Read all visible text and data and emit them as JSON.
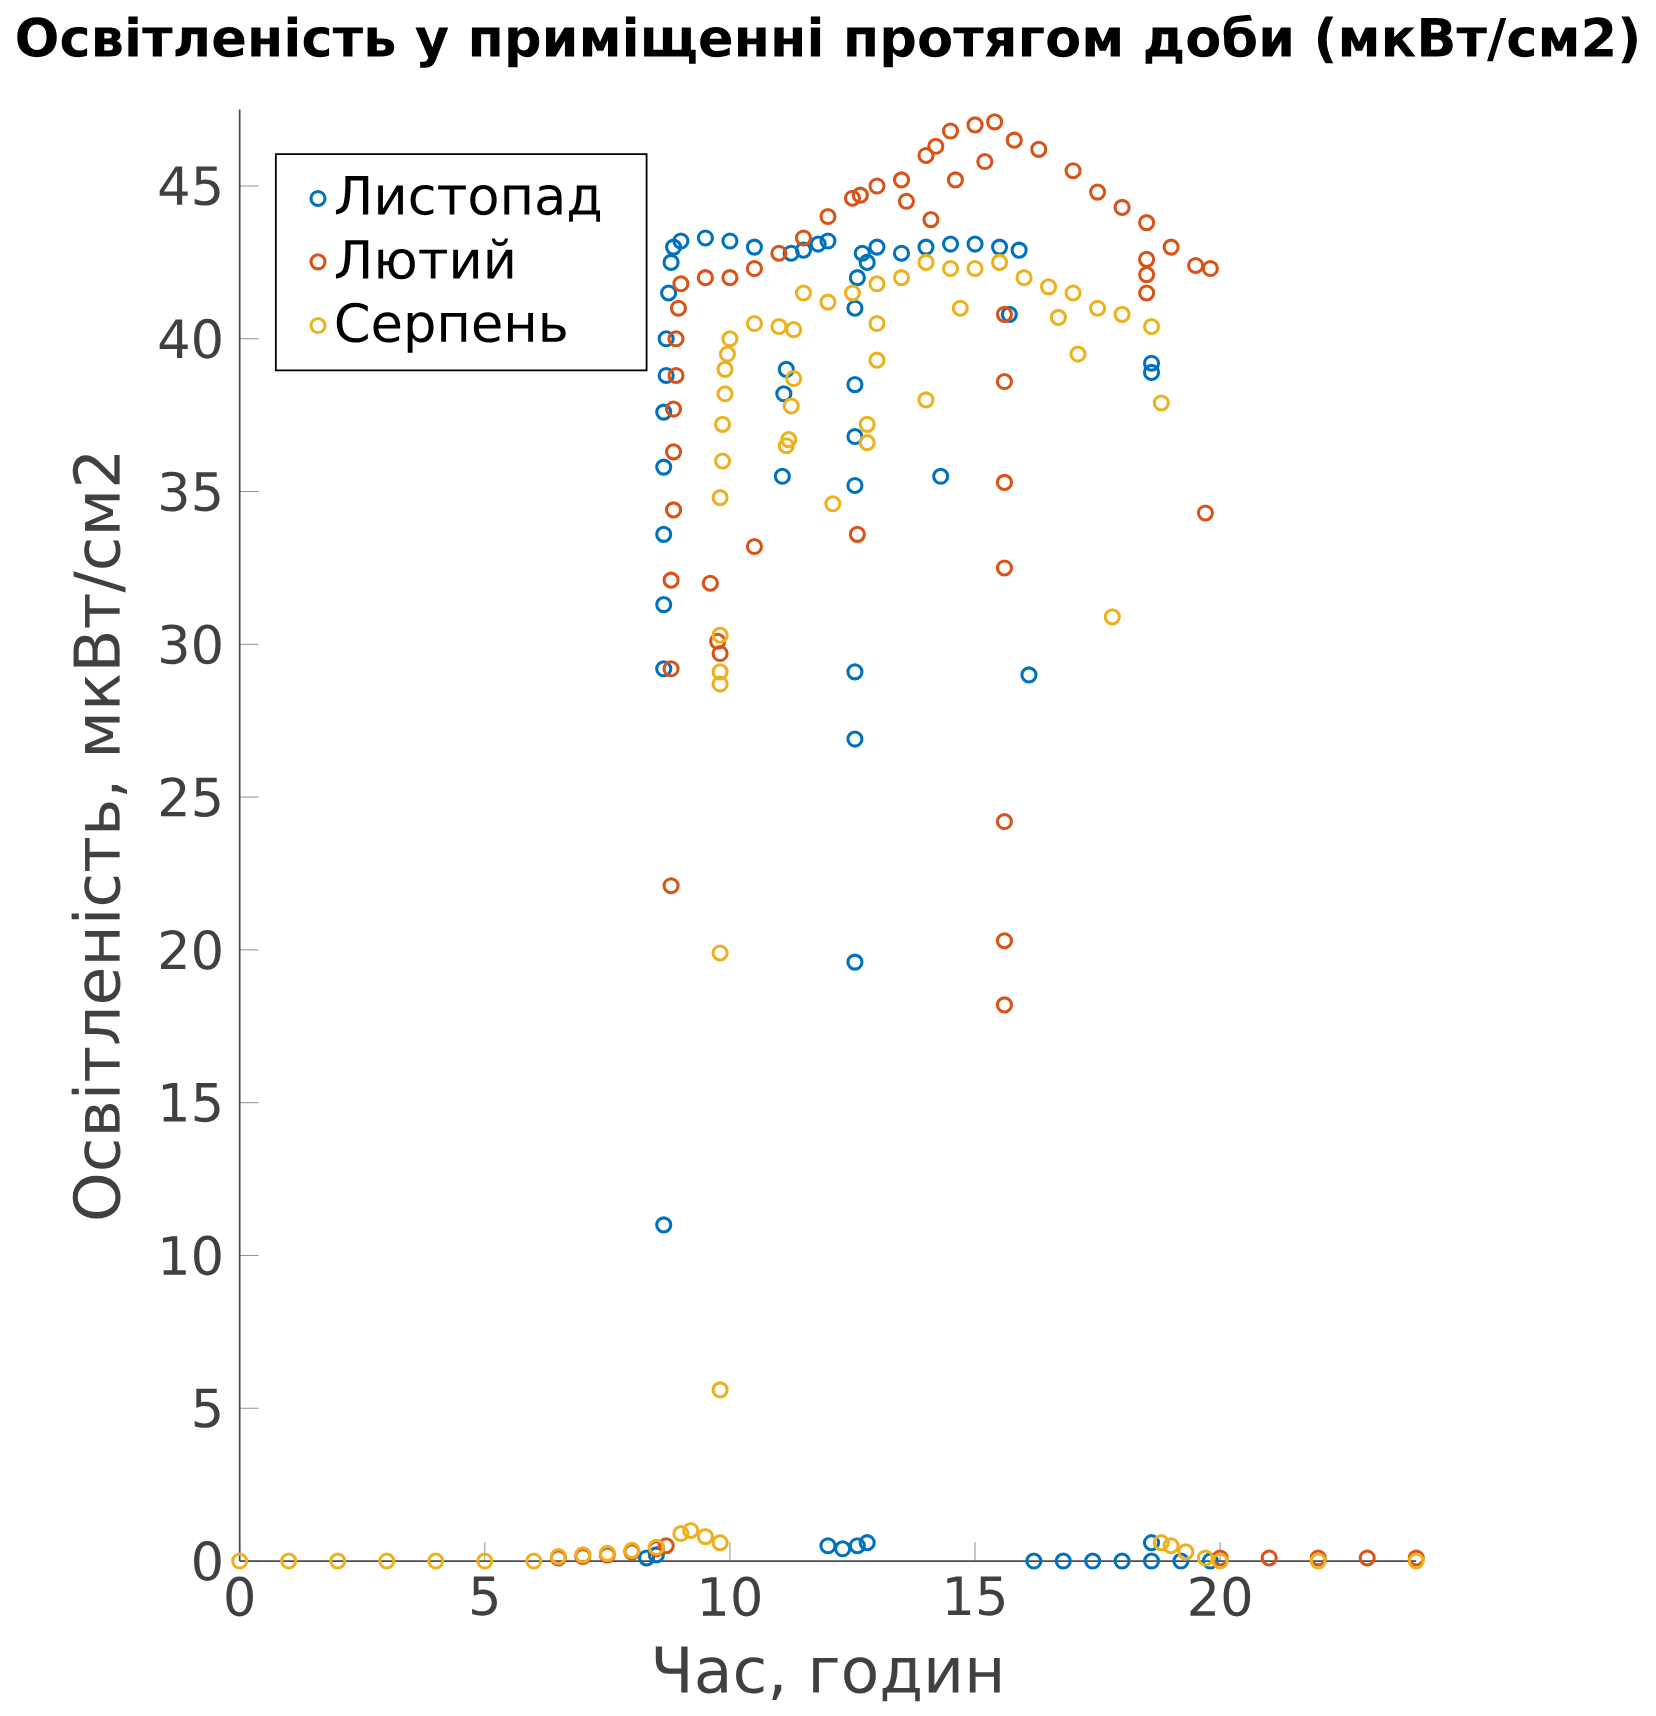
{
  "chart_data": {
    "type": "scatter",
    "title": "Освітленість у приміщенні протягом доби (мкВт/см2)",
    "xlabel": "Час, годин",
    "ylabel": "Освітленість, мкВт/см2",
    "xlim": [
      0,
      24
    ],
    "ylim": [
      0,
      47.5
    ],
    "xticks": [
      0,
      5,
      10,
      15,
      20
    ],
    "yticks": [
      0,
      5,
      10,
      15,
      20,
      25,
      30,
      35,
      40,
      45
    ],
    "marker": "circle",
    "legend": "top left",
    "grid": false,
    "series": [
      {
        "name": "Листопад",
        "color": "#0072bd",
        "x": [
          8.3,
          8.5,
          8.65,
          8.65,
          8.65,
          8.65,
          8.65,
          8.65,
          8.7,
          8.7,
          8.75,
          8.8,
          8.85,
          9,
          9.5,
          10,
          10.5,
          11.25,
          11.5,
          11.8,
          12,
          11.07,
          11.1,
          11.15,
          12.0,
          12.3,
          12.6,
          12.8,
          12.55,
          12.55,
          12.55,
          12.55,
          12.55,
          12.55,
          12.55,
          12.6,
          12.7,
          12.8,
          13,
          13.5,
          14,
          14.5,
          15,
          15.5,
          15.9,
          14.3,
          16.1,
          15.7,
          16.2,
          16.8,
          17.4,
          18.0,
          18.6,
          19.2,
          19.8,
          18.6,
          18.6,
          18.6
        ],
        "values": [
          0.1,
          0.2,
          11,
          29.2,
          31.3,
          33.6,
          35.8,
          37.6,
          38.8,
          40,
          41.5,
          42.5,
          43,
          43.2,
          43.3,
          43.2,
          43.0,
          42.8,
          42.9,
          43.1,
          43.2,
          35.5,
          38.2,
          39,
          0.5,
          0.4,
          0.5,
          0.6,
          19.6,
          26.9,
          29.1,
          35.2,
          36.8,
          38.5,
          41,
          42,
          42.8,
          42.5,
          43,
          42.8,
          43,
          43.1,
          43.1,
          43.0,
          42.9,
          35.5,
          29,
          40.8,
          0,
          0,
          0,
          0,
          0,
          0,
          0,
          39.2,
          38.9,
          0.6
        ]
      },
      {
        "name": "Лютий",
        "color": "#d95319",
        "x": [
          6.5,
          7,
          7.5,
          8,
          8.5,
          8.7,
          8.8,
          8.8,
          8.8,
          8.85,
          8.85,
          8.85,
          8.9,
          8.9,
          8.95,
          9,
          9.5,
          10,
          10.5,
          11,
          11.5,
          12,
          12.5,
          12.66,
          13,
          13.5,
          14,
          14.2,
          14.5,
          15,
          15.4,
          13.6,
          14.1,
          14.6,
          15.2,
          9.6,
          9.75,
          9.8,
          10.5,
          12.6,
          15.8,
          16.3,
          17,
          17.5,
          18,
          18.5,
          19,
          19.5,
          19.8,
          15.6,
          15.6,
          15.6,
          15.6,
          15.6,
          15.6,
          15.6,
          18.5,
          18.5,
          18.5,
          19.7,
          20,
          21,
          22,
          23,
          24
        ],
        "values": [
          0.1,
          0.15,
          0.2,
          0.3,
          0.4,
          0.5,
          22.1,
          29.2,
          32.1,
          34.4,
          36.3,
          37.7,
          38.8,
          40,
          41,
          41.8,
          42,
          42,
          42.3,
          42.8,
          43.3,
          44,
          44.6,
          44.7,
          45,
          45.2,
          46,
          46.3,
          46.8,
          47,
          47.1,
          44.5,
          43.9,
          45.2,
          45.8,
          32,
          30.1,
          29.7,
          33.2,
          33.6,
          46.5,
          46.2,
          45.5,
          44.8,
          44.3,
          43.8,
          43,
          42.4,
          42.3,
          18.2,
          20.3,
          24.2,
          32.5,
          35.3,
          38.6,
          40.8,
          41.5,
          42.1,
          42.6,
          34.3,
          0.1,
          0.1,
          0.1,
          0.1,
          0.1
        ]
      },
      {
        "name": "Серпень",
        "color": "#edb120",
        "x": [
          0,
          1,
          2,
          3,
          4,
          5,
          6,
          6.5,
          7,
          7.5,
          8,
          8.5,
          9.0,
          9.2,
          9.5,
          9.8,
          9.8,
          9.8,
          9.8,
          9.8,
          9.8,
          9.8,
          9.85,
          9.85,
          9.9,
          9.9,
          9.95,
          10,
          10.5,
          11,
          11.3,
          11.15,
          11.2,
          11.25,
          11.3,
          11.5,
          12,
          12.5,
          13,
          13.5,
          14,
          14.5,
          15,
          15.5,
          16,
          16.5,
          17,
          17.5,
          18,
          18.6,
          13,
          14.7,
          16.7,
          12.1,
          12.8,
          12.8,
          13,
          14,
          17.1,
          17.8,
          18.8,
          18.8,
          19,
          19.3,
          19.7,
          20,
          22,
          24
        ],
        "values": [
          0,
          0,
          0,
          0,
          0,
          0,
          0,
          0.15,
          0.2,
          0.25,
          0.35,
          0.45,
          0.9,
          1.0,
          0.8,
          0.6,
          5.6,
          19.9,
          28.7,
          29.1,
          30.3,
          34.8,
          36,
          37.2,
          38.2,
          39,
          39.5,
          40,
          40.5,
          40.4,
          40.3,
          36.5,
          36.7,
          37.8,
          38.7,
          41.5,
          41.2,
          41.5,
          41.8,
          42,
          42.5,
          42.3,
          42.3,
          42.5,
          42,
          41.7,
          41.5,
          41,
          40.8,
          40.4,
          40.5,
          41,
          40.7,
          34.6,
          37.2,
          36.6,
          39.3,
          38,
          39.5,
          30.9,
          37.9,
          0.6,
          0.5,
          0.3,
          0.1,
          0,
          0,
          0
        ]
      }
    ]
  }
}
